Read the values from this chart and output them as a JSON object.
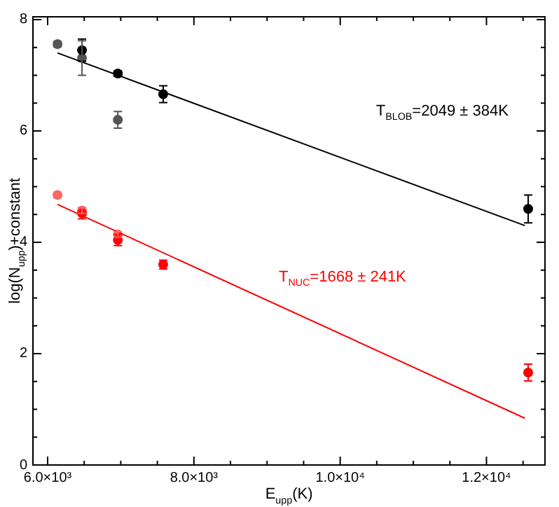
{
  "chart_data": {
    "type": "scatter",
    "xlabel": "E$_{upp}$(K)",
    "ylabel": "log(N$_{upp}$)+constant",
    "xlim": [
      5800,
      12800
    ],
    "ylim": [
      0,
      8.05
    ],
    "xticks": [
      {
        "value": 6000,
        "label": "6.0×10³"
      },
      {
        "value": 6500,
        "label": null
      },
      {
        "value": 7000,
        "label": null
      },
      {
        "value": 7500,
        "label": null
      },
      {
        "value": 8000,
        "label": "8.0×10³"
      },
      {
        "value": 8500,
        "label": null
      },
      {
        "value": 9000,
        "label": null
      },
      {
        "value": 9500,
        "label": null
      },
      {
        "value": 10000,
        "label": "1.0×10⁴"
      },
      {
        "value": 10500,
        "label": null
      },
      {
        "value": 11000,
        "label": null
      },
      {
        "value": 11500,
        "label": null
      },
      {
        "value": 12000,
        "label": "1.2×10⁴"
      },
      {
        "value": 12500,
        "label": null
      }
    ],
    "yticks": [
      0,
      {
        "value": 0.5,
        "label": null
      },
      {
        "value": 1,
        "label": null
      },
      {
        "value": 1.5,
        "label": null
      },
      2,
      {
        "value": 2.5,
        "label": null
      },
      {
        "value": 3,
        "label": null
      },
      {
        "value": 3.5,
        "label": null
      },
      4,
      {
        "value": 4.5,
        "label": null
      },
      {
        "value": 5,
        "label": null
      },
      {
        "value": 5.5,
        "label": null
      },
      6,
      {
        "value": 6.5,
        "label": null
      },
      {
        "value": 7,
        "label": null
      },
      {
        "value": 7.5,
        "label": null
      },
      8
    ],
    "grid": false,
    "legend": false,
    "series": [
      {
        "type": "line",
        "marker": "none",
        "color": "#000000",
        "x": [
          6135,
          12525
        ],
        "values": [
          7.4,
          4.3
        ]
      },
      {
        "type": "line",
        "marker": "none",
        "color": "#ff0000",
        "x": [
          6135,
          12525
        ],
        "values": [
          4.68,
          0.84
        ]
      },
      {
        "marker": "circle",
        "color": "#000000",
        "x": [
          6470,
          6960,
          7580,
          12570
        ],
        "values": [
          7.45,
          7.03,
          6.66,
          4.6
        ],
        "errors": [
          0.2,
          0.05,
          0.15,
          0.25
        ]
      },
      {
        "marker": "circle",
        "color": "#555555",
        "x": [
          6135,
          6470,
          6960
        ],
        "values": [
          7.56,
          7.31,
          6.2
        ],
        "errors": [
          0.05,
          0.31,
          0.15
        ]
      },
      {
        "marker": "circle",
        "color": "#ff0000",
        "x": [
          6470,
          6960,
          7580,
          12570
        ],
        "values": [
          4.52,
          4.04,
          3.6,
          1.66
        ],
        "errors": [
          0.1,
          0.1,
          0.08,
          0.15
        ]
      },
      {
        "marker": "circle",
        "color": "#ff6666",
        "x": [
          6135,
          6470,
          6960
        ],
        "values": [
          4.85,
          4.57,
          4.14
        ],
        "errors": [
          0.05,
          0.05,
          0.05
        ]
      }
    ],
    "annotations": [
      "T$_{BLOB}$=2049 ± 384K",
      "T$_{NUC}$=1668 ± 241K"
    ]
  }
}
